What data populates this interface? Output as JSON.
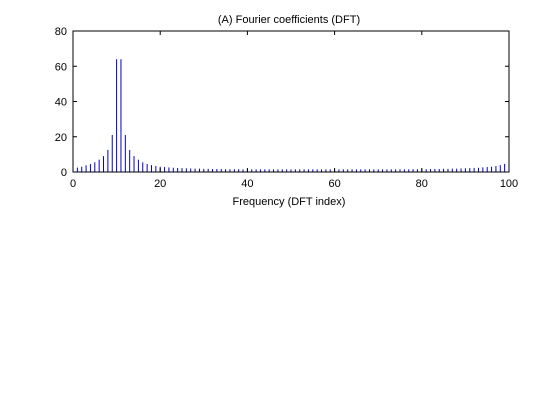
{
  "chart_data": {
    "type": "bar",
    "title": "(A) Fourier coefficients (DFT)",
    "xlabel": "Frequency (DFT index)",
    "ylabel": "",
    "xlim": [
      0,
      100
    ],
    "ylim": [
      0,
      80
    ],
    "xticks": [
      0,
      20,
      40,
      60,
      80,
      100
    ],
    "yticks": [
      0,
      20,
      40,
      60,
      80
    ],
    "grid": false,
    "bar_color": "#0000c8",
    "x": [
      0,
      1,
      2,
      3,
      4,
      5,
      6,
      7,
      8,
      9,
      10,
      11,
      12,
      13,
      14,
      15,
      16,
      17,
      18,
      19,
      20,
      21,
      22,
      23,
      24,
      25,
      26,
      27,
      28,
      29,
      30,
      31,
      32,
      33,
      34,
      35,
      36,
      37,
      38,
      39,
      40,
      41,
      42,
      43,
      44,
      45,
      46,
      47,
      48,
      49,
      50,
      51,
      52,
      53,
      54,
      55,
      56,
      57,
      58,
      59,
      60,
      61,
      62,
      63,
      64,
      65,
      66,
      67,
      68,
      69,
      70,
      71,
      72,
      73,
      74,
      75,
      76,
      77,
      78,
      79,
      80,
      81,
      82,
      83,
      84,
      85,
      86,
      87,
      88,
      89,
      90,
      91,
      92,
      93,
      94,
      95,
      96,
      97,
      98,
      99,
      100
    ],
    "values": [
      2.2,
      2.5,
      3.0,
      3.8,
      4.5,
      5.5,
      7.0,
      9.0,
      12.5,
      21.0,
      64.0,
      64.0,
      21.0,
      12.5,
      9.0,
      7.0,
      5.5,
      4.6,
      3.9,
      3.4,
      3.0,
      2.8,
      2.6,
      2.4,
      2.3,
      2.2,
      2.1,
      2.0,
      1.9,
      1.9,
      1.8,
      1.8,
      1.7,
      1.7,
      1.7,
      1.6,
      1.6,
      1.6,
      1.6,
      1.5,
      1.5,
      1.5,
      1.5,
      1.5,
      1.5,
      1.5,
      1.5,
      1.5,
      1.5,
      1.5,
      1.5,
      1.5,
      1.5,
      1.5,
      1.5,
      1.5,
      1.5,
      1.5,
      1.5,
      1.5,
      1.5,
      1.5,
      1.5,
      1.5,
      1.5,
      1.5,
      1.5,
      1.5,
      1.5,
      1.5,
      1.5,
      1.5,
      1.5,
      1.5,
      1.5,
      1.5,
      1.5,
      1.5,
      1.6,
      1.6,
      1.6,
      1.6,
      1.7,
      1.7,
      1.7,
      1.8,
      1.8,
      1.9,
      1.9,
      2.0,
      2.1,
      2.2,
      2.3,
      2.4,
      2.6,
      2.8,
      3.0,
      3.4,
      3.9,
      4.6,
      2.2
    ]
  }
}
